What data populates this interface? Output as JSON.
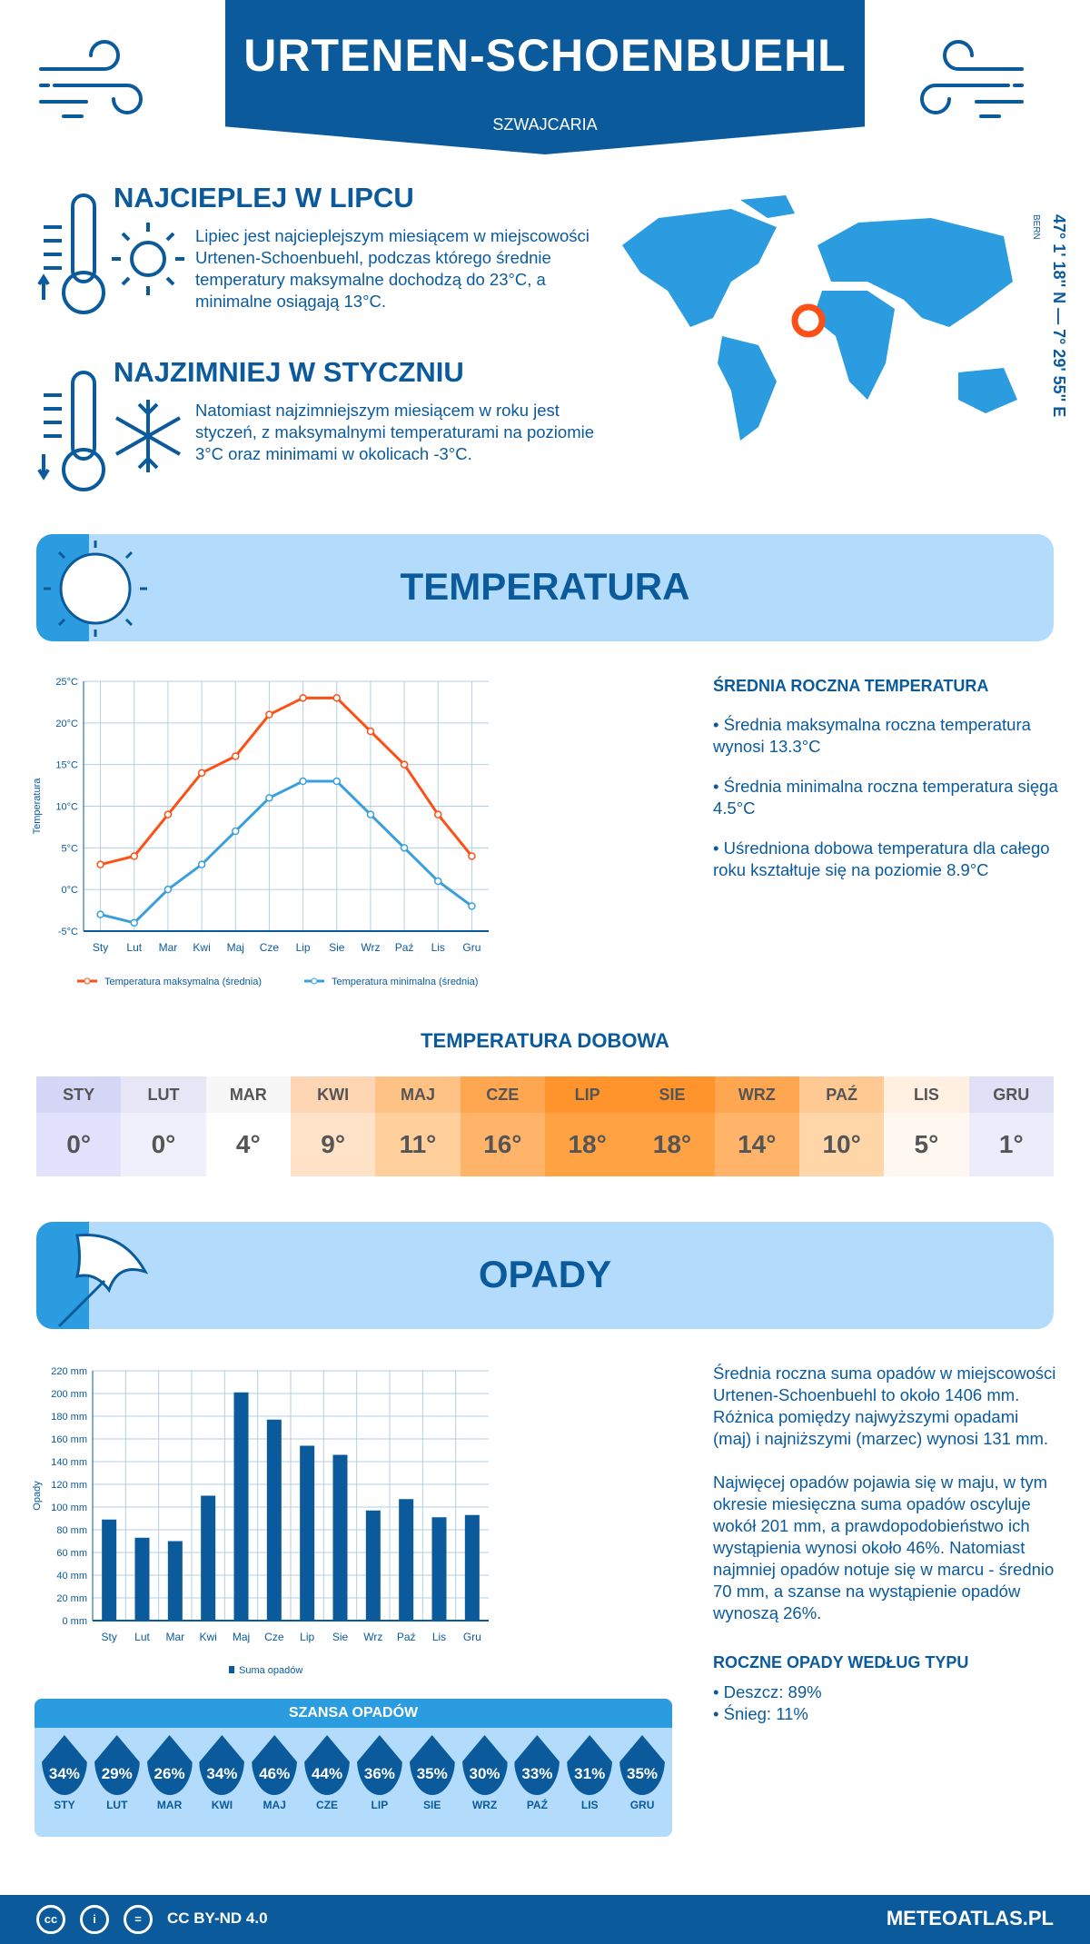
{
  "header": {
    "title": "URTENEN-SCHOENBUEHL",
    "country": "SZWAJCARIA"
  },
  "warm": {
    "title": "NAJCIEPLEJ W LIPCU",
    "text": "Lipiec jest najcieplejszym miesiącem w miejscowości Urtenen-Schoenbuehl, podczas którego średnie temperatury maksymalne dochodzą do 23°C, a minimalne osiągają 13°C."
  },
  "cold": {
    "title": "NAJZIMNIEJ W STYCZNIU",
    "text": "Natomiast najzimniejszym miesiącem w roku jest styczeń, z maksymalnymi temperaturami na poziomie 3°C oraz minimami w okolicach -3°C."
  },
  "map": {
    "capital": "BERN",
    "coords": "47° 1' 18'' N — 7° 29' 55'' E"
  },
  "temp_section": {
    "title": "TEMPERATURA"
  },
  "temp_summary": {
    "title": "ŚREDNIA ROCZNA TEMPERATURA",
    "items": [
      "• Średnia maksymalna roczna temperatura wynosi 13.3°C",
      "• Średnia minimalna roczna temperatura sięga 4.5°C",
      "• Uśredniona dobowa temperatura dla całego roku kształtuje się na poziomie 8.9°C"
    ]
  },
  "daily": {
    "title": "TEMPERATURA DOBOWA",
    "months": [
      "STY",
      "LUT",
      "MAR",
      "KWI",
      "MAJ",
      "CZE",
      "LIP",
      "SIE",
      "WRZ",
      "PAŹ",
      "LIS",
      "GRU"
    ],
    "values": [
      "0°",
      "0°",
      "4°",
      "9°",
      "11°",
      "16°",
      "18°",
      "18°",
      "14°",
      "10°",
      "5°",
      "1°"
    ],
    "colors": [
      "#e2e2fc",
      "#f0f0fc",
      "#ffffff",
      "#ffe2c8",
      "#ffcf9c",
      "#ffb46a",
      "#ffa244",
      "#ffa244",
      "#ffb46a",
      "#ffd6a8",
      "#fff8f0",
      "#ececfb"
    ],
    "header_colors": [
      "#d6d6f7",
      "#e6e6f7",
      "#f7f7f7",
      "#ffd6b4",
      "#ffc285",
      "#ffa650",
      "#ff942c",
      "#ff942c",
      "#ffa650",
      "#ffc994",
      "#fff0e2",
      "#e0e0f6"
    ]
  },
  "chart_data": [
    {
      "type": "line",
      "categories": [
        "Sty",
        "Lut",
        "Mar",
        "Kwi",
        "Maj",
        "Cze",
        "Lip",
        "Sie",
        "Wrz",
        "Paź",
        "Lis",
        "Gru"
      ],
      "ylabel": "Temperatura",
      "ylim": [
        -5,
        25
      ],
      "yticks": [
        "-5°C",
        "0°C",
        "5°C",
        "10°C",
        "15°C",
        "20°C",
        "25°C"
      ],
      "grid": true,
      "legend": "bottom",
      "series": [
        {
          "name": "Temperatura maksymalna (średnia)",
          "color": "#fc5016",
          "values": [
            3,
            4,
            9,
            14,
            16,
            21,
            23,
            23,
            19,
            15,
            9,
            4
          ]
        },
        {
          "name": "Temperatura minimalna (średnia)",
          "color": "#3a9fdc",
          "values": [
            -3,
            -4,
            0,
            3,
            7,
            11,
            13,
            13,
            9,
            5,
            1,
            -2
          ]
        }
      ]
    },
    {
      "type": "bar",
      "categories": [
        "Sty",
        "Lut",
        "Mar",
        "Kwi",
        "Maj",
        "Cze",
        "Lip",
        "Sie",
        "Wrz",
        "Paź",
        "Lis",
        "Gru"
      ],
      "ylabel": "Opady",
      "ylim": [
        0,
        220
      ],
      "yticks": [
        "0 mm",
        "20 mm",
        "40 mm",
        "60 mm",
        "80 mm",
        "100 mm",
        "120 mm",
        "140 mm",
        "160 mm",
        "180 mm",
        "200 mm",
        "220 mm"
      ],
      "grid": true,
      "legend": "bottom",
      "series": [
        {
          "name": "Suma opadów",
          "color": "#0a5a9c",
          "values": [
            89,
            73,
            70,
            110,
            201,
            177,
            154,
            146,
            97,
            107,
            91,
            93
          ]
        }
      ]
    }
  ],
  "precip_section": {
    "title": "OPADY"
  },
  "precip_text": [
    "Średnia roczna suma opadów w miejscowości Urtenen-Schoenbuehl to około 1406 mm. Różnica pomiędzy najwyższymi opadami (maj) i najniższymi (marzec) wynosi 131 mm.",
    "Najwięcej opadów pojawia się w maju, w tym okresie miesięczna suma opadów oscyluje wokół 201 mm, a prawdopodobieństwo ich wystąpienia wynosi około 46%. Natomiast najmniej opadów notuje się w marcu - średnio 70 mm, a szanse na wystąpienie opadów wynoszą 26%."
  ],
  "chance": {
    "title": "SZANSA OPADÓW",
    "months": [
      "STY",
      "LUT",
      "MAR",
      "KWI",
      "MAJ",
      "CZE",
      "LIP",
      "SIE",
      "WRZ",
      "PAŹ",
      "LIS",
      "GRU"
    ],
    "values": [
      "34%",
      "29%",
      "26%",
      "34%",
      "46%",
      "44%",
      "36%",
      "35%",
      "30%",
      "33%",
      "31%",
      "35%"
    ]
  },
  "types": {
    "title": "ROCZNE OPADY WEDŁUG TYPU",
    "items": [
      "• Deszcz: 89%",
      "• Śnieg: 11%"
    ]
  },
  "footer": {
    "license": "CC BY-ND 4.0",
    "site": "METEOATLAS.PL"
  }
}
